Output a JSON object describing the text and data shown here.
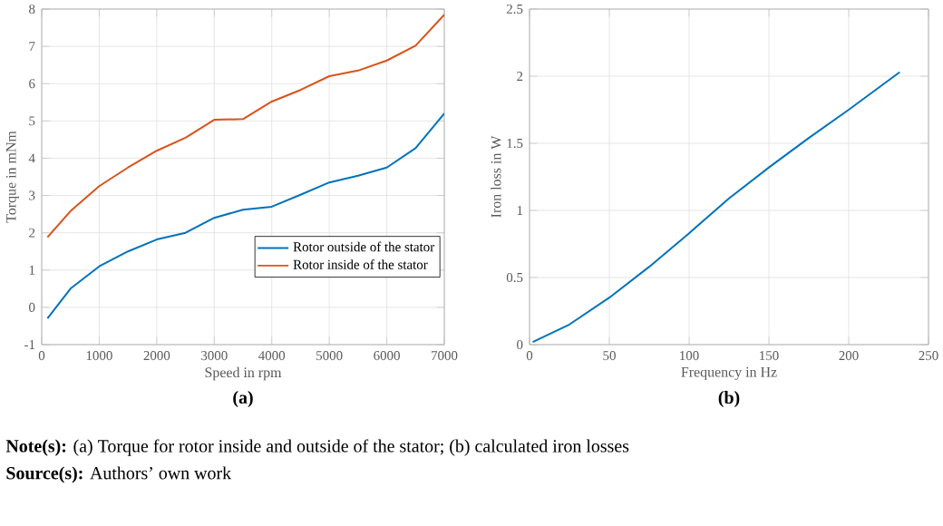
{
  "chart_data": [
    {
      "type": "line",
      "xlabel": "Speed in rpm",
      "ylabel": "Torque in mNm",
      "x": [
        100,
        500,
        1000,
        1500,
        2000,
        2500,
        3000,
        3500,
        4000,
        4500,
        5000,
        5500,
        6000,
        6500,
        7000
      ],
      "series": [
        {
          "name": "Rotor outside of the stator",
          "color": "#0072bd",
          "values": [
            -0.3,
            0.5,
            1.1,
            1.5,
            1.82,
            2.0,
            2.4,
            2.62,
            2.7,
            3.02,
            3.35,
            3.53,
            3.75,
            4.27,
            5.2
          ]
        },
        {
          "name": "Rotor inside of the stator",
          "color": "#d95319",
          "values": [
            1.88,
            2.58,
            3.25,
            3.75,
            4.2,
            4.55,
            5.03,
            5.05,
            5.52,
            5.83,
            6.2,
            6.35,
            6.62,
            7.02,
            7.85
          ]
        }
      ],
      "xlim": [
        0,
        7000
      ],
      "ylim": [
        -1,
        8
      ],
      "xticks": [
        0,
        1000,
        2000,
        3000,
        4000,
        5000,
        6000,
        7000
      ],
      "yticks": [
        -1,
        0,
        1,
        2,
        3,
        4,
        5,
        6,
        7,
        8
      ],
      "grid": true,
      "legend": "bottom right",
      "annotations": [
        "(a)",
        "**Note(s):** (a) Torque for rotor inside and outside of the stator; (b) calculated iron losses",
        "**Source(s):** Authors’ own work"
      ]
    },
    {
      "type": "line",
      "xlabel": "Frequency in Hz",
      "ylabel": "Iron loss in W",
      "x": [
        2,
        25,
        50,
        75,
        100,
        125,
        150,
        175,
        200,
        232
      ],
      "series": [
        {
          "color": "#0072bd",
          "values": [
            0.02,
            0.15,
            0.35,
            0.58,
            0.83,
            1.09,
            1.32,
            1.54,
            1.75,
            2.03
          ]
        }
      ],
      "xlim": [
        0,
        250
      ],
      "ylim": [
        0,
        2.5
      ],
      "xticks": [
        0,
        50,
        100,
        150,
        200,
        250
      ],
      "yticks": [
        0,
        0.5,
        1,
        1.5,
        2,
        2.5
      ],
      "grid": true,
      "annotations": [
        "(b)"
      ]
    }
  ]
}
